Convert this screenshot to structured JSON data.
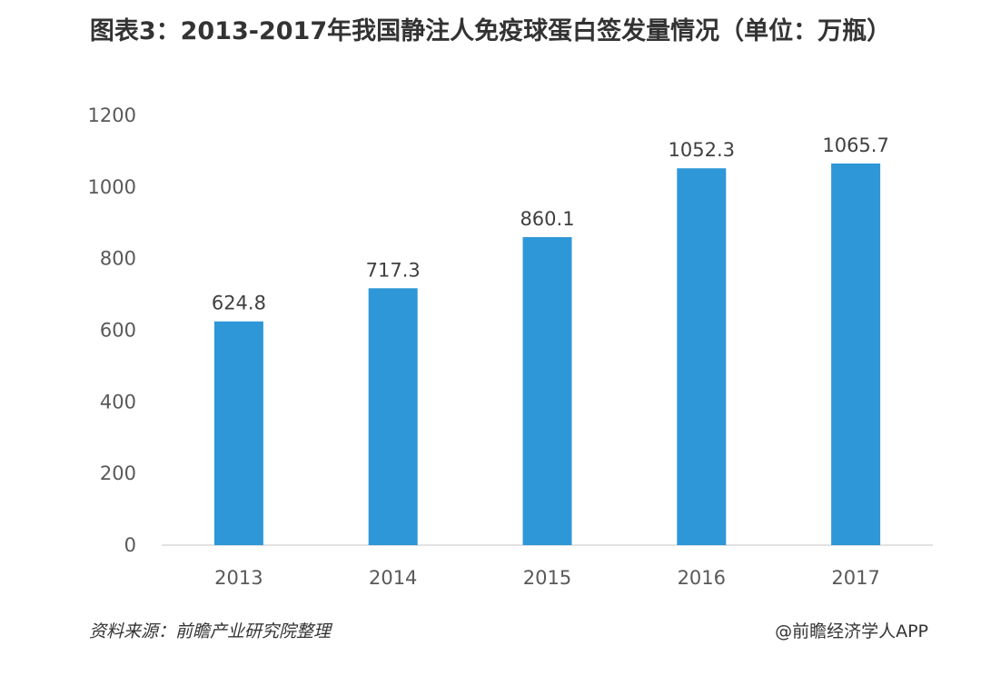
{
  "chart_data": {
    "type": "bar",
    "title": "图表3：2013-2017年我国静注人免疫球蛋白签发量情况（单位：万瓶）",
    "categories": [
      "2013",
      "2014",
      "2015",
      "2016",
      "2017"
    ],
    "values": [
      624.8,
      717.3,
      860.1,
      1052.3,
      1065.7
    ],
    "data_labels": [
      "624.8",
      "717.3",
      "860.1",
      "1052.3",
      "1065.7"
    ],
    "yticks": [
      "0",
      "200",
      "400",
      "600",
      "800",
      "1000",
      "1200"
    ],
    "ylim": [
      0,
      1200
    ],
    "grid": false,
    "legend": "none",
    "bar_color": "#2E97D8"
  },
  "footer": {
    "source": "资料来源：前瞻产业研究院整理",
    "credit": "@前瞻经济学人APP"
  }
}
